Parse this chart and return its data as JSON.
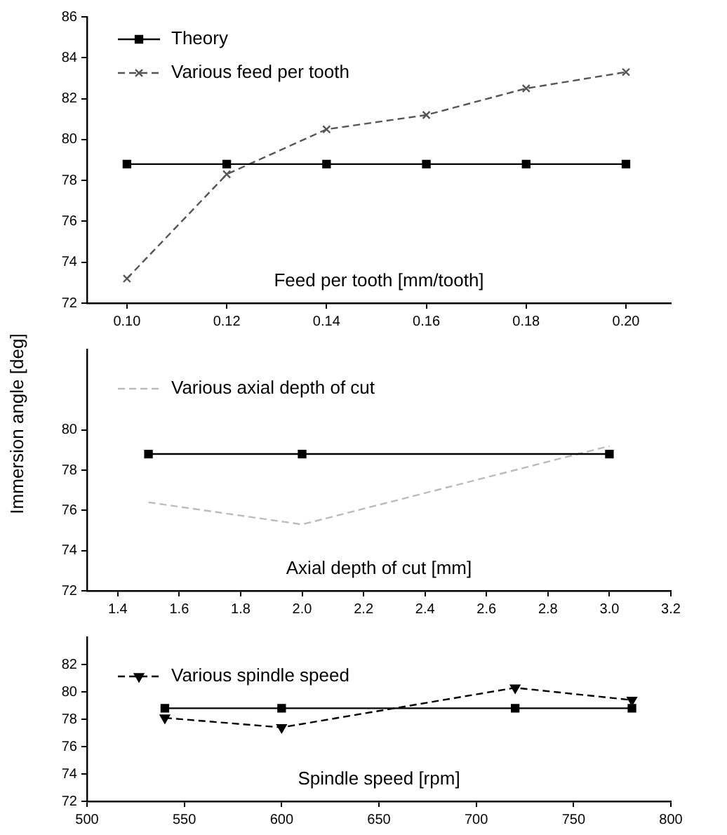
{
  "chart_data": [
    {
      "type": "line",
      "xlabel": "Feed per tooth [mm/tooth]",
      "x": [
        0.1,
        0.12,
        0.14,
        0.16,
        0.18,
        0.2
      ],
      "series": [
        {
          "name": "Theory",
          "color": "#000000",
          "values": [
            78.8,
            78.8,
            78.8,
            78.8,
            78.8,
            78.8
          ],
          "marker": "square",
          "line_style": "solid"
        },
        {
          "name": "Various feed per tooth",
          "color": "#555555",
          "values": [
            73.2,
            78.3,
            80.5,
            81.2,
            82.5,
            83.3
          ],
          "marker": "cross",
          "line_style": "dashed"
        }
      ],
      "xlim": [
        0.092,
        0.209
      ],
      "xticks": [
        {
          "value": 0.1,
          "label": "0.10"
        },
        {
          "value": 0.12,
          "label": "0.12"
        },
        {
          "value": 0.14,
          "label": "0.14"
        },
        {
          "value": 0.16,
          "label": "0.16"
        },
        {
          "value": 0.18,
          "label": "0.18"
        },
        {
          "value": 0.2,
          "label": "0.20"
        }
      ],
      "ylim": [
        72,
        86
      ],
      "yticks": [
        72,
        74,
        76,
        78,
        80,
        82,
        84,
        86
      ],
      "grid": false,
      "legend": "top left"
    },
    {
      "type": "line",
      "xlabel": "Axial depth of cut [mm]",
      "ylabel": "Immersion angle [deg]",
      "series": [
        {
          "color": "#000000",
          "x": [
            1.5,
            2.0,
            3.0
          ],
          "values": [
            78.8,
            78.8,
            78.8
          ],
          "marker": "square",
          "line_style": "solid"
        },
        {
          "name": "Various axial depth of cut",
          "color": "#bbbbbb",
          "x": [
            1.5,
            2.0,
            3.0
          ],
          "values": [
            76.4,
            75.3,
            79.2
          ],
          "marker": "none",
          "line_style": "dashed"
        }
      ],
      "xlim": [
        1.3,
        3.2
      ],
      "xticks": [
        1.4,
        1.6,
        1.8,
        {
          "value": 2.0,
          "label": "2.0"
        },
        2.2,
        2.4,
        2.6,
        2.8,
        {
          "value": 3.0,
          "label": "3.0"
        },
        3.2
      ],
      "ylim": [
        72,
        84
      ],
      "yticks": [
        72,
        74,
        76,
        78,
        80
      ],
      "grid": false,
      "legend": "top left"
    },
    {
      "type": "line",
      "xlabel": "Spindle speed [rpm]",
      "x": [
        540,
        600,
        720,
        780
      ],
      "series": [
        {
          "color": "#000000",
          "values": [
            78.8,
            78.8,
            78.8,
            78.8
          ],
          "marker": "square",
          "line_style": "solid"
        },
        {
          "name": "Various spindle speed",
          "color": "#000000",
          "values": [
            78.1,
            77.4,
            80.3,
            79.4
          ],
          "marker": "triangle",
          "line_style": "dashed"
        }
      ],
      "xlim": [
        500,
        800
      ],
      "xticks": [
        500,
        550,
        600,
        650,
        700,
        750,
        800
      ],
      "ylim": [
        72,
        84
      ],
      "yticks": [
        72,
        74,
        76,
        78,
        80,
        82
      ],
      "grid": false,
      "legend": "top left"
    }
  ]
}
